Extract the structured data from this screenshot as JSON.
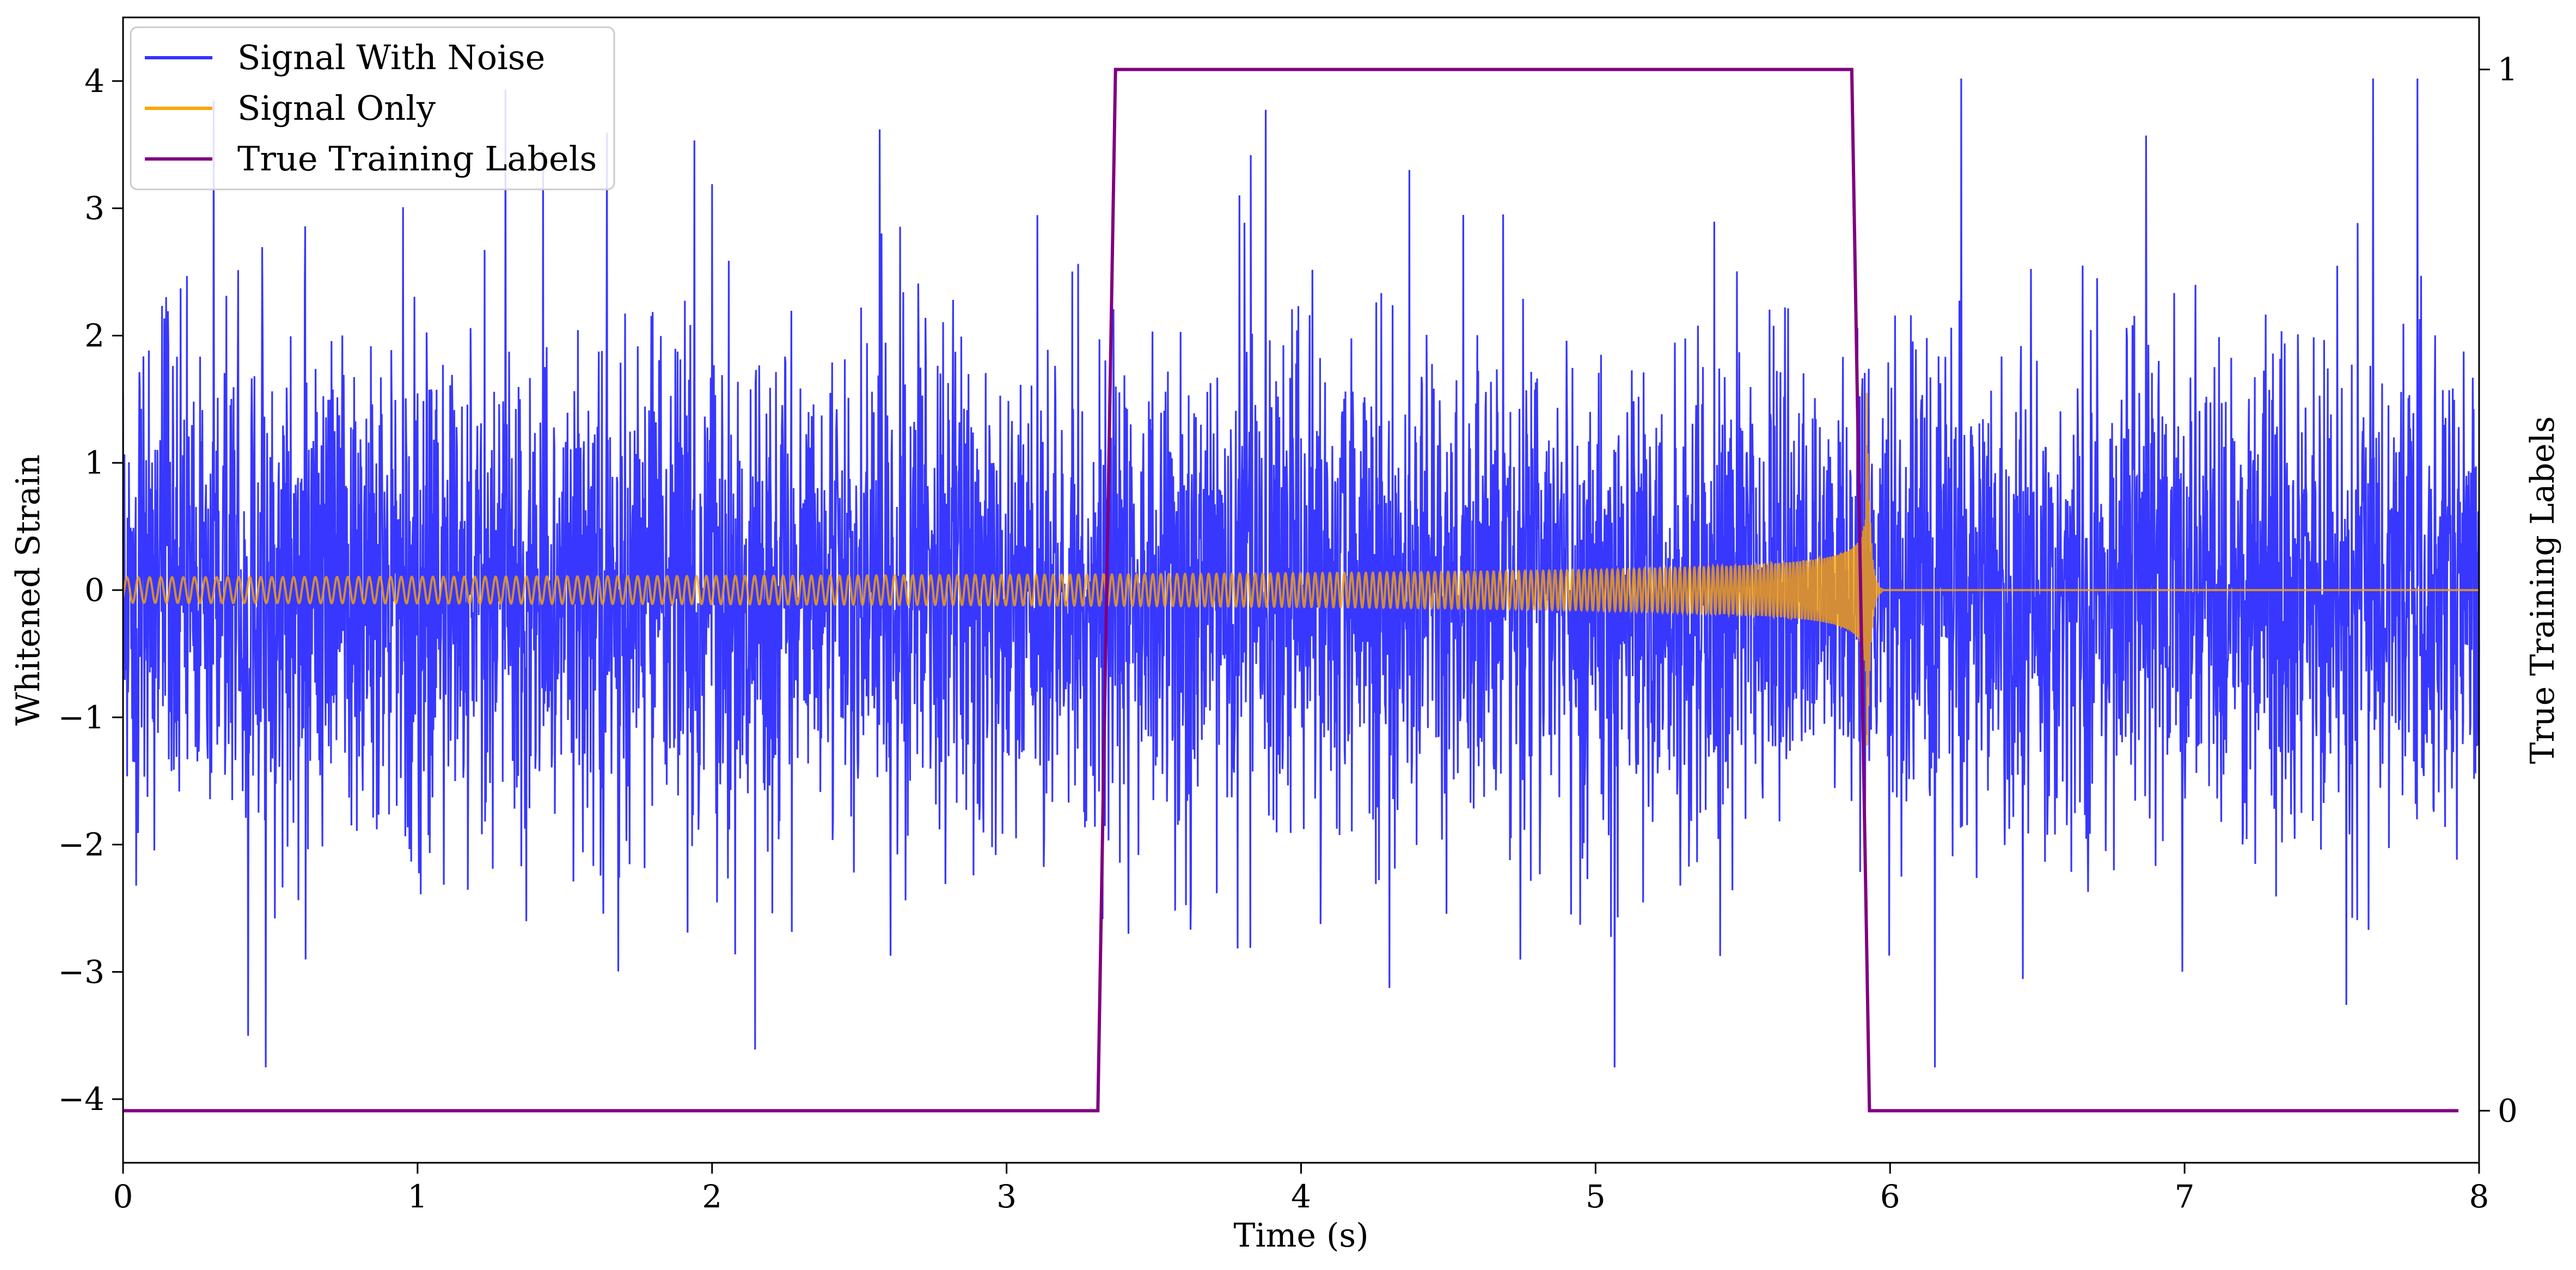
{
  "chart_data": {
    "type": "line",
    "xlabel": "Time (s)",
    "ylabel": "Whitened Strain",
    "y2label": "True Training Labels",
    "xlim": [
      0,
      8
    ],
    "ylim": [
      -4.5,
      4.5
    ],
    "y2lim": [
      -0.05,
      1.05
    ],
    "x_ticks": [
      0,
      1,
      2,
      3,
      4,
      5,
      6,
      7,
      8
    ],
    "y_ticks": [
      -4,
      -3,
      -2,
      -1,
      0,
      1,
      2,
      3,
      4
    ],
    "y2_ticks": [
      0,
      1
    ],
    "legend_position": "upper-left",
    "grid": false,
    "colors": {
      "signal_with_noise": "#3333ff",
      "signal_only": "#ffa500",
      "labels": "#800080"
    },
    "series": [
      {
        "name": "Signal With Noise",
        "kind": "noise",
        "color": "#3333ff",
        "typical_range": [
          -1.5,
          1.5
        ],
        "peak_range": [
          -3.75,
          4.02
        ]
      },
      {
        "name": "Signal Only",
        "kind": "chirp",
        "color": "#ffa500",
        "start_amplitude": 0.1,
        "peak_amplitude": 1.55,
        "merger_time": 5.92,
        "post_merger_value": 0.0
      },
      {
        "name": "True Training Labels",
        "kind": "step",
        "axis": "right",
        "color": "#800080",
        "x": [
          0.0,
          3.31,
          3.37,
          5.87,
          5.93,
          7.93
        ],
        "y": [
          0,
          0,
          1,
          1,
          0,
          0
        ]
      }
    ]
  }
}
